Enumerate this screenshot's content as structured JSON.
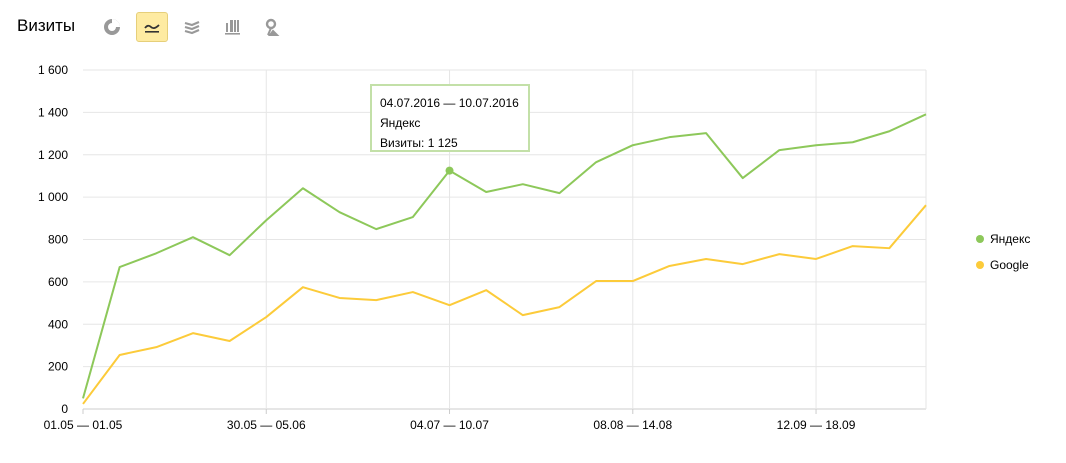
{
  "header": {
    "title": "Визиты",
    "icons": [
      {
        "name": "pie-chart-icon",
        "active": false
      },
      {
        "name": "line-chart-icon",
        "active": true
      },
      {
        "name": "area-chart-icon",
        "active": false
      },
      {
        "name": "bar-chart-icon",
        "active": false
      },
      {
        "name": "map-icon",
        "active": false
      }
    ]
  },
  "tooltip": {
    "period": "04.07.2016 — 10.07.2016",
    "series": "Яндекс",
    "value": "Визиты: 1 125"
  },
  "chart_data": {
    "type": "line",
    "ylim": [
      0,
      1600
    ],
    "yticks": [
      "0",
      "200",
      "400",
      "600",
      "800",
      "1 000",
      "1 200",
      "1 400",
      "1 600"
    ],
    "xtick_labels": [
      {
        "index": 0,
        "label": "01.05 — 01.05"
      },
      {
        "index": 5,
        "label": "30.05 — 05.06"
      },
      {
        "index": 10,
        "label": "04.07 — 10.07"
      },
      {
        "index": 15,
        "label": "08.08 — 14.08"
      },
      {
        "index": 20,
        "label": "12.09 — 18.09"
      }
    ],
    "grid": true,
    "legend": "right",
    "series": [
      {
        "name": "Яндекс",
        "color": "#8dc85a",
        "values": [
          50,
          670,
          735,
          811,
          726,
          891,
          1042,
          929,
          849,
          906,
          1125,
          1024,
          1061,
          1019,
          1165,
          1245,
          1283,
          1302,
          1090,
          1222,
          1245,
          1259,
          1311,
          1391
        ]
      },
      {
        "name": "Google",
        "color": "#fccb3a",
        "values": [
          24,
          255,
          292,
          358,
          321,
          434,
          575,
          524,
          514,
          552,
          490,
          561,
          443,
          481,
          604,
          604,
          675,
          708,
          684,
          731,
          708,
          769,
          759,
          962
        ]
      }
    ],
    "highlight": {
      "series": 0,
      "index": 10
    }
  }
}
